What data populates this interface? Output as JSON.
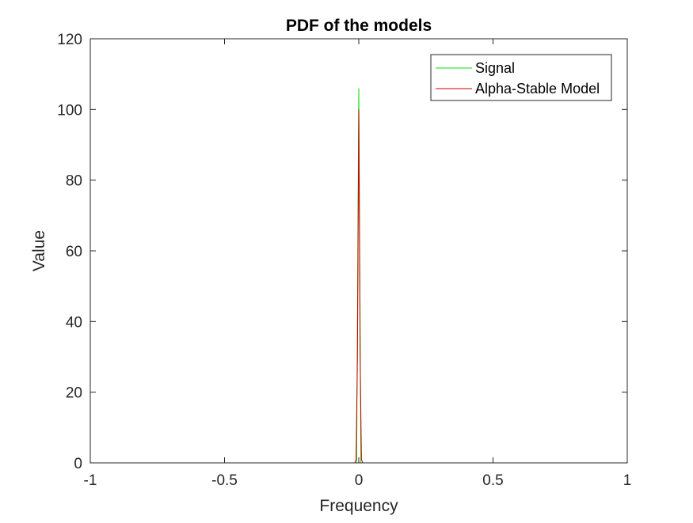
{
  "chart_data": {
    "type": "line",
    "title": "PDF of the models",
    "xlabel": "Frequency",
    "ylabel": "Value",
    "xlim": [
      -1,
      1
    ],
    "ylim": [
      0,
      120
    ],
    "xticks": [
      -1,
      -0.5,
      0,
      0.5,
      1
    ],
    "xtick_labels": [
      "-1",
      "-0.5",
      "0",
      "0.5",
      "1"
    ],
    "yticks": [
      0,
      20,
      40,
      60,
      80,
      100,
      120
    ],
    "ytick_labels": [
      "0",
      "20",
      "40",
      "60",
      "80",
      "100",
      "120"
    ],
    "grid": false,
    "legend_position": "top-right",
    "series": [
      {
        "name": "Signal",
        "color": "#00e000",
        "x": [
          -1,
          -0.02,
          -0.008,
          0,
          0.008,
          0.02,
          1
        ],
        "y": [
          0,
          0,
          0,
          106,
          0,
          0,
          0
        ]
      },
      {
        "name": "Alpha-Stable Model",
        "color": "#cc0000",
        "x": [
          -1,
          -0.015,
          -0.01,
          -0.005,
          0,
          0.005,
          0.01,
          0.015,
          1
        ],
        "y": [
          0,
          0,
          1,
          30,
          100,
          30,
          1,
          0,
          0
        ]
      }
    ]
  }
}
